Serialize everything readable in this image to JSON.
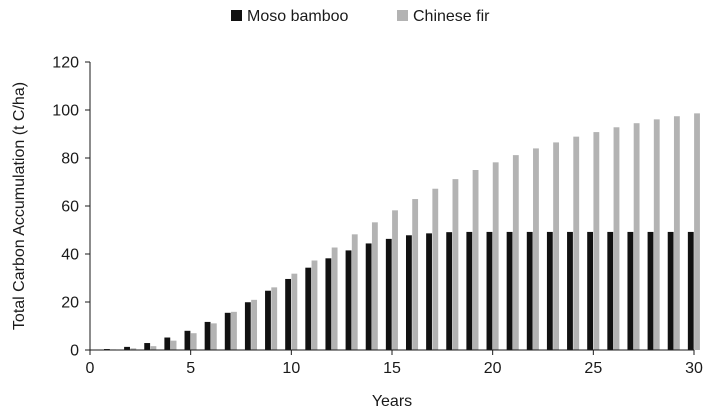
{
  "chart_data": {
    "type": "bar",
    "title": "",
    "xlabel": "Years",
    "ylabel": "Total Carbon Accumulation (t C/ha)",
    "xlim": [
      0,
      30
    ],
    "ylim": [
      0,
      120
    ],
    "x_ticks": [
      "0",
      "5",
      "10",
      "15",
      "20",
      "25",
      "30"
    ],
    "y_ticks": [
      "0",
      "20",
      "40",
      "60",
      "80",
      "100",
      "120"
    ],
    "grid": false,
    "legend_position": "top-center",
    "categories": [
      1,
      2,
      3,
      4,
      5,
      6,
      7,
      8,
      9,
      10,
      11,
      12,
      13,
      14,
      15,
      16,
      17,
      18,
      19,
      20,
      21,
      22,
      23,
      24,
      25,
      26,
      27,
      28,
      29,
      30
    ],
    "series": [
      {
        "name": "Moso bamboo",
        "color": "#111111",
        "values": [
          0.4,
          1.3,
          2.9,
          5.2,
          8.0,
          11.7,
          15.5,
          19.9,
          24.7,
          29.6,
          34.3,
          38.2,
          41.5,
          44.4,
          46.3,
          47.8,
          48.6,
          49.1,
          49.2,
          49.2,
          49.2,
          49.2,
          49.2,
          49.2,
          49.2,
          49.2,
          49.2,
          49.2,
          49.2,
          49.2
        ]
      },
      {
        "name": "Chinese fir",
        "color": "#b3b3b3",
        "values": [
          0.2,
          0.7,
          1.6,
          3.9,
          7.0,
          11.1,
          15.9,
          20.9,
          26.1,
          31.8,
          37.3,
          42.7,
          48.2,
          53.2,
          58.2,
          62.9,
          67.2,
          71.2,
          75.0,
          78.2,
          81.2,
          84.0,
          86.5,
          88.9,
          90.8,
          92.8,
          94.5,
          96.1,
          97.4,
          98.6
        ]
      }
    ]
  }
}
